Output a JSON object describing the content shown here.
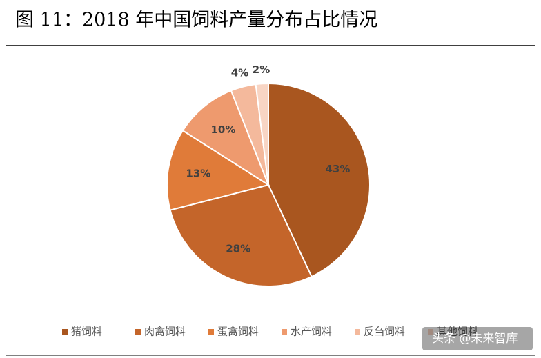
{
  "chart_data": {
    "type": "pie",
    "title": "图 11：2018 年中国饲料产量分布占比情况",
    "categories": [
      "猪饲料",
      "肉禽饲料",
      "蛋禽饲料",
      "水产饲料",
      "反刍饲料",
      "其他饲料"
    ],
    "values": [
      43,
      28,
      13,
      10,
      4,
      2
    ],
    "value_labels": [
      "43%",
      "28%",
      "13%",
      "10%",
      "4%",
      "2%"
    ],
    "colors": [
      "#a9561f",
      "#c4652a",
      "#e07b39",
      "#ee9a6e",
      "#f4b99c",
      "#f8d5c4"
    ],
    "legend": "bottom"
  },
  "watermark": "头条 @未来智库"
}
